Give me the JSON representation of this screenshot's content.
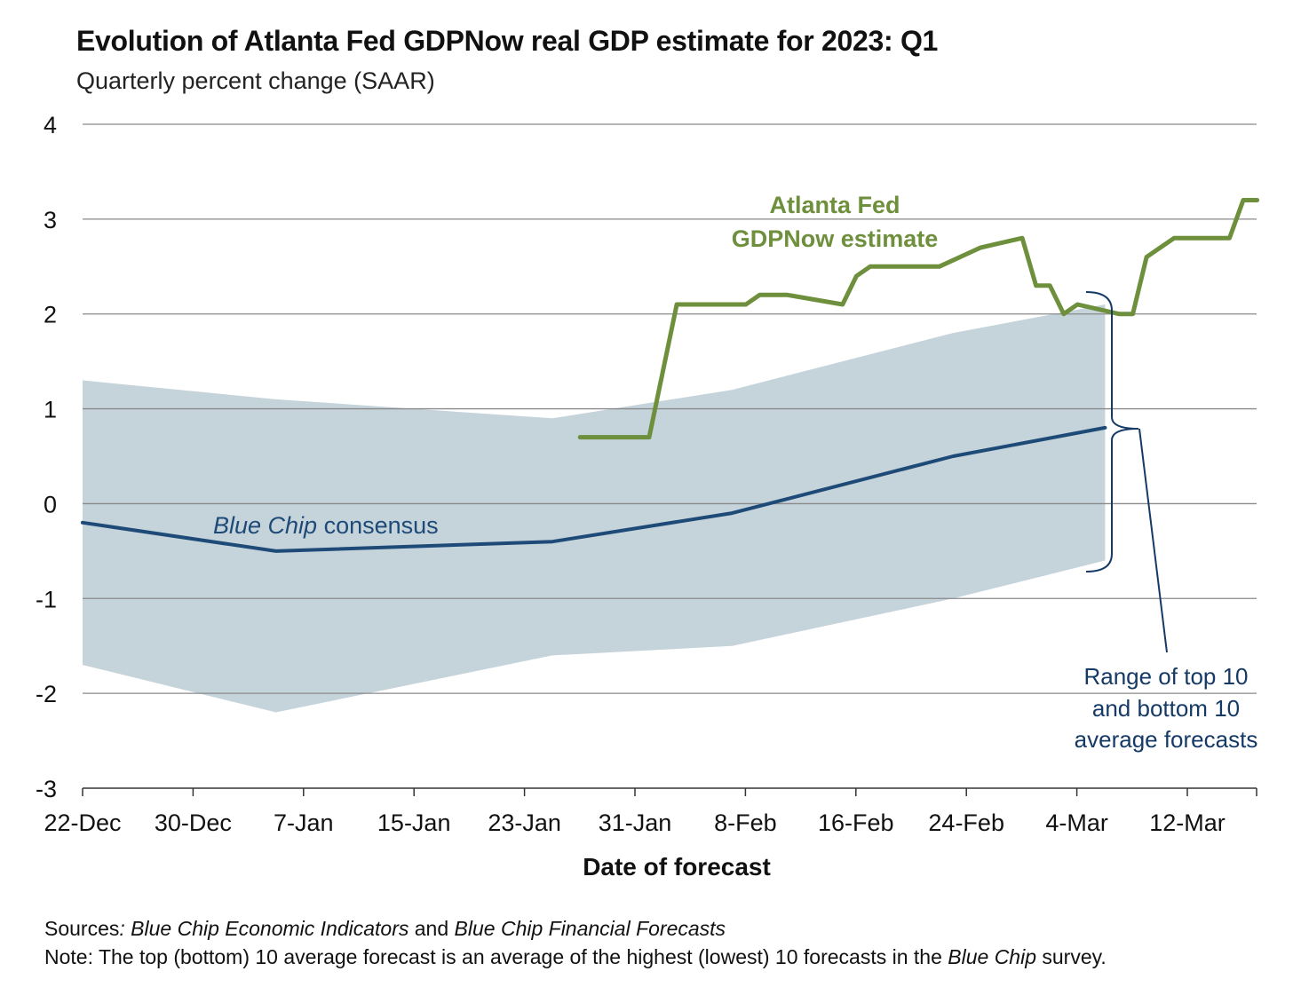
{
  "title": "Evolution of Atlanta Fed GDPNow real GDP estimate for 2023: Q1",
  "subtitle": "Quarterly percent change (SAAR)",
  "chart_data": {
    "type": "line",
    "xlabel": "Date of forecast",
    "ylim": [
      -3,
      4
    ],
    "yticks": [
      "4",
      "3",
      "2",
      "1",
      "0",
      "-1",
      "-2",
      "-3"
    ],
    "ytick_values": [
      4,
      3,
      2,
      1,
      0,
      -1,
      -2,
      -3
    ],
    "xticks": [
      "22-Dec",
      "30-Dec",
      "7-Jan",
      "15-Jan",
      "23-Jan",
      "31-Jan",
      "8-Feb",
      "16-Feb",
      "24-Feb",
      "4-Mar",
      "12-Mar"
    ],
    "x_range": [
      "2022-12-22",
      "2023-03-17"
    ],
    "grid": true,
    "series": [
      {
        "name": "Atlanta Fed GDPNow estimate",
        "color": "#6e8f3c",
        "x": [
          "2023-01-27",
          "2023-02-01",
          "2023-02-03",
          "2023-02-08",
          "2023-02-09",
          "2023-02-11",
          "2023-02-15",
          "2023-02-16",
          "2023-02-17",
          "2023-02-22",
          "2023-02-25",
          "2023-02-28",
          "2023-03-01",
          "2023-03-02",
          "2023-03-03",
          "2023-03-04",
          "2023-03-07",
          "2023-03-08",
          "2023-03-09",
          "2023-03-11",
          "2023-03-15",
          "2023-03-16",
          "2023-03-17"
        ],
        "y": [
          0.7,
          0.7,
          2.1,
          2.1,
          2.2,
          2.2,
          2.1,
          2.4,
          2.5,
          2.5,
          2.7,
          2.8,
          2.3,
          2.3,
          2.0,
          2.1,
          2.0,
          2.0,
          2.6,
          2.8,
          2.8,
          3.2,
          3.2
        ]
      },
      {
        "name": "Blue Chip consensus",
        "color": "#1e4a78",
        "x": [
          "2022-12-22",
          "2023-01-05",
          "2023-01-25",
          "2023-02-07",
          "2023-02-23",
          "2023-03-06"
        ],
        "y": [
          -0.2,
          -0.5,
          -0.4,
          -0.1,
          0.5,
          0.8
        ]
      }
    ],
    "range_band": {
      "name": "Range of top 10 and bottom 10 average forecasts",
      "color": "#c5d3db",
      "x": [
        "2022-12-22",
        "2023-01-05",
        "2023-01-25",
        "2023-02-07",
        "2023-02-23",
        "2023-03-06"
      ],
      "top": [
        1.3,
        1.1,
        0.9,
        1.2,
        1.8,
        2.1
      ],
      "bottom": [
        -1.7,
        -2.2,
        -1.6,
        -1.5,
        -1.0,
        -0.6
      ]
    }
  },
  "annotations": {
    "gdpnow_line1": "Atlanta Fed",
    "gdpnow_line2": "GDPNow estimate",
    "bluechip_italic": "Blue Chip",
    "bluechip_rest": " consensus",
    "range_line1": "Range of top 10",
    "range_line2": "and bottom 10",
    "range_line3": "average forecasts"
  },
  "footer": {
    "sources_label": "Sources",
    "sources_colon": ": ",
    "sources_src1": "Blue Chip Economic Indicators",
    "sources_and": " and ",
    "sources_src2": "Blue Chip Financial Forecasts",
    "note_label": "Note",
    "note_text1": ": The top (bottom) 10 average forecast is an average of the highest (lowest) 10 forecasts in the ",
    "note_italic": "Blue Chip",
    "note_text2": " survey."
  }
}
